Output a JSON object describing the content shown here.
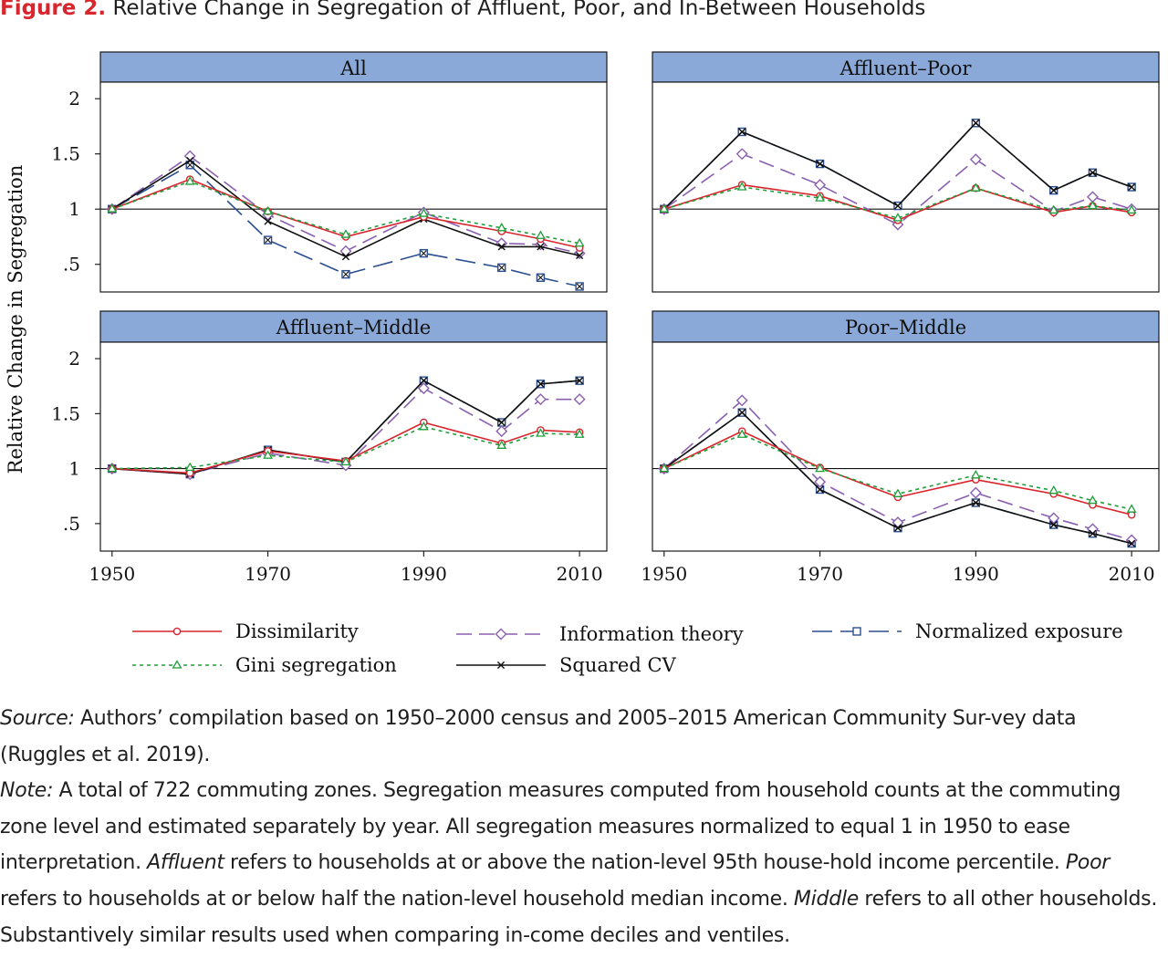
{
  "figure": {
    "label": "Figure 2.",
    "title": "Relative Change in Segregation of Affluent, Poor, and In-Between Households"
  },
  "colors": {
    "strip_fill": "#8aa8d8",
    "dissimilarity": "#d8262e",
    "gini": "#1f9e3a",
    "information": "#8b5fb0",
    "squared_cv": "#111111",
    "exposure": "#2b4f8f"
  },
  "chart_data": {
    "type": "line",
    "ylabel": "Relative Change in Segregation",
    "x_ticks": [
      1950,
      1970,
      1990,
      2010
    ],
    "y_ticks": [
      {
        "value": 0.5,
        "label": ".5"
      },
      {
        "value": 1,
        "label": "1"
      },
      {
        "value": 1.5,
        "label": "1.5"
      },
      {
        "value": 2,
        "label": "2"
      }
    ],
    "xlim": [
      1948.5,
      2013.5
    ],
    "ylim": [
      0.25,
      2.15
    ],
    "reference_line": 1,
    "x": [
      1950,
      1960,
      1970,
      1980,
      1990,
      2000,
      2005,
      2010
    ],
    "legend": [
      {
        "key": "dissimilarity",
        "label": "Dissimilarity"
      },
      {
        "key": "information",
        "label": "Information theory"
      },
      {
        "key": "exposure",
        "label": "Normalized exposure"
      },
      {
        "key": "gini",
        "label": "Gini segregation"
      },
      {
        "key": "squared_cv",
        "label": "Squared CV"
      }
    ],
    "panels": [
      {
        "title": "All",
        "series": {
          "dissimilarity": [
            1,
            1.27,
            0.98,
            0.75,
            0.93,
            0.8,
            0.73,
            0.65
          ],
          "gini": [
            1,
            1.25,
            0.98,
            0.77,
            0.96,
            0.83,
            0.76,
            0.69
          ],
          "information": [
            1,
            1.48,
            0.95,
            0.62,
            0.97,
            0.69,
            0.68,
            0.6
          ],
          "squared_cv": [
            1,
            1.44,
            0.89,
            0.57,
            0.91,
            0.66,
            0.66,
            0.58
          ],
          "exposure": [
            1,
            1.4,
            0.72,
            0.41,
            0.6,
            0.47,
            0.38,
            0.3
          ]
        }
      },
      {
        "title": "Affluent–Poor",
        "series": {
          "dissimilarity": [
            1,
            1.22,
            1.12,
            0.9,
            1.19,
            0.97,
            1.03,
            0.97
          ],
          "gini": [
            1,
            1.2,
            1.1,
            0.92,
            1.19,
            0.99,
            1.03,
            0.99
          ],
          "information": [
            1,
            1.5,
            1.22,
            0.86,
            1.45,
            0.98,
            1.11,
            1.0
          ],
          "squared_cv": [
            1,
            1.7,
            1.41,
            1.03,
            1.78,
            1.17,
            1.33,
            1.2
          ],
          "exposure": [
            1,
            1.7,
            1.41,
            1.03,
            1.78,
            1.17,
            1.33,
            1.2
          ]
        }
      },
      {
        "title": "Affluent–Middle",
        "series": {
          "dissimilarity": [
            1,
            0.96,
            1.16,
            1.07,
            1.42,
            1.23,
            1.35,
            1.33
          ],
          "gini": [
            1,
            1.01,
            1.12,
            1.06,
            1.38,
            1.21,
            1.32,
            1.31
          ],
          "information": [
            1,
            0.95,
            1.14,
            1.03,
            1.73,
            1.34,
            1.63,
            1.63
          ],
          "squared_cv": [
            1,
            0.95,
            1.17,
            1.06,
            1.8,
            1.42,
            1.77,
            1.8
          ],
          "exposure": [
            1,
            0.95,
            1.17,
            1.06,
            1.8,
            1.42,
            1.77,
            1.8
          ]
        }
      },
      {
        "title": "Poor–Middle",
        "series": {
          "dissimilarity": [
            1,
            1.34,
            1.01,
            0.74,
            0.9,
            0.77,
            0.67,
            0.58
          ],
          "gini": [
            1,
            1.31,
            1.0,
            0.77,
            0.94,
            0.8,
            0.71,
            0.63
          ],
          "information": [
            1,
            1.62,
            0.88,
            0.51,
            0.78,
            0.55,
            0.45,
            0.35
          ],
          "squared_cv": [
            1,
            1.51,
            0.81,
            0.46,
            0.69,
            0.49,
            0.41,
            0.32
          ],
          "exposure": [
            1,
            1.51,
            0.81,
            0.46,
            0.69,
            0.49,
            0.41,
            0.32
          ]
        }
      }
    ]
  },
  "notes": {
    "source_label": "Source:",
    "source_text": " Authors’ compilation based on 1950–2000 census and 2005–2015 American Community Sur-vey data (Ruggles et al. 2019).",
    "note_label": "Note:",
    "note_text_1": " A total of 722 commuting zones. Segregation measures computed from household counts at the commuting zone level and estimated separately by year. All segregation measures normalized to equal 1 in 1950 to ease interpretation. ",
    "affluent_word": "Affluent",
    "note_text_2": " refers to households at or above the nation-level 95th house-hold income percentile. ",
    "poor_word": "Poor",
    "note_text_3": " refers to households at or below half the nation-level household median income. ",
    "middle_word": "Middle",
    "note_text_4": " refers to all other households. Substantively similar results used when comparing in-come deciles and ventiles."
  }
}
